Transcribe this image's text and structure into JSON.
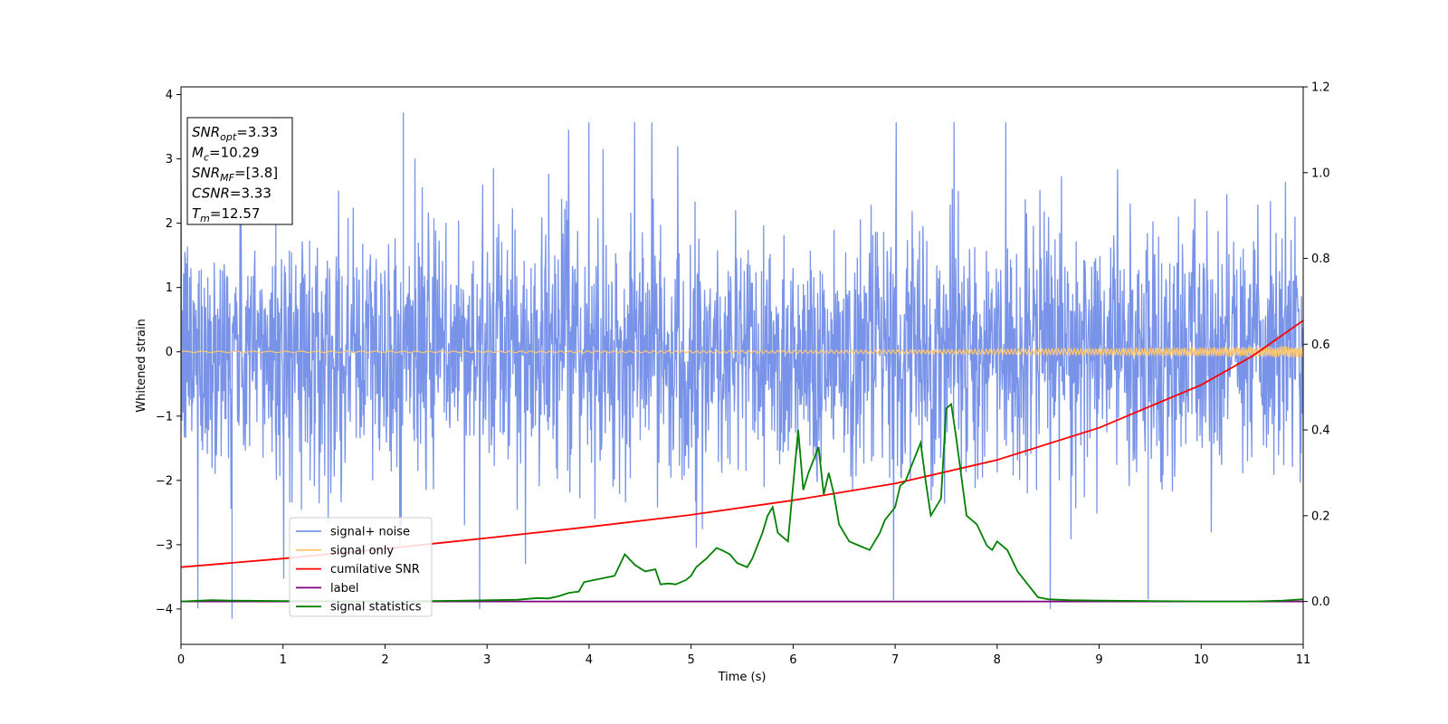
{
  "chart_data": {
    "type": "line",
    "title": "",
    "xlabel": "Time (s)",
    "ylabel": "Whitened strain",
    "xlim": [
      0,
      11
    ],
    "ylim_left": [
      -4.55,
      4.12
    ],
    "ylim_right": [
      -0.1,
      1.2
    ],
    "x_ticks": [
      0,
      1,
      2,
      3,
      4,
      5,
      6,
      7,
      8,
      9,
      10,
      11
    ],
    "y_ticks_left": [
      -4,
      -3,
      -2,
      -1,
      0,
      1,
      2,
      3,
      4
    ],
    "y_ticks_right": [
      0.0,
      0.2,
      0.4,
      0.6,
      0.8,
      1.0,
      1.2
    ],
    "y_tick_labels_left": [
      "−4",
      "−3",
      "−2",
      "−1",
      "0",
      "1",
      "2",
      "3",
      "4"
    ],
    "y_tick_labels_right": [
      "0.0",
      "0.2",
      "0.4",
      "0.6",
      "0.8",
      "1.0",
      "1.2"
    ],
    "grid": false,
    "legend_position": "lower-left",
    "annotation_lines": [
      {
        "sym": "SNR",
        "sub": "opt",
        "value": "=3.33"
      },
      {
        "sym": "M",
        "sub": "c",
        "value": "=10.29"
      },
      {
        "sym": "SNR",
        "sub": "MF",
        "value": "=[3.8]"
      },
      {
        "sym": "CSNR",
        "sub": "",
        "value": "=3.33"
      },
      {
        "sym": "T",
        "sub": "m",
        "value": "=12.57"
      }
    ],
    "series": [
      {
        "name": "signal+ noise",
        "color": "#7893e8",
        "axis": "left",
        "kind": "noise",
        "sigma": 0.95,
        "range": [
          -4.15,
          3.72
        ],
        "spikes": [
          [
            0.5,
            -4.15
          ],
          [
            2.18,
            3.72
          ],
          [
            9.48,
            -3.85
          ],
          [
            0.93,
            3.65
          ]
        ]
      },
      {
        "name": "signal only",
        "color": "#ffc870",
        "axis": "left",
        "kind": "chirp",
        "amplitude_start": 0.01,
        "amplitude_end": 0.09
      },
      {
        "name": "cumilative SNR",
        "color": "#ff0000",
        "axis": "right",
        "x": [
          0,
          1,
          2,
          3,
          4,
          5,
          6,
          7,
          8,
          9,
          10,
          10.5,
          11
        ],
        "y": [
          0.08,
          0.1,
          0.123,
          0.148,
          0.174,
          0.202,
          0.236,
          0.275,
          0.33,
          0.405,
          0.505,
          0.572,
          0.655
        ]
      },
      {
        "name": "label",
        "color": "#800080",
        "axis": "right",
        "x": [
          0,
          11
        ],
        "y": [
          0.0,
          0.0
        ]
      },
      {
        "name": "signal statistics",
        "color": "#008000",
        "axis": "right",
        "x": [
          0,
          0.3,
          0.5,
          1.0,
          2.0,
          2.8,
          3.3,
          3.5,
          3.6,
          3.7,
          3.8,
          3.9,
          3.95,
          4.05,
          4.15,
          4.25,
          4.35,
          4.45,
          4.55,
          4.65,
          4.7,
          4.78,
          4.85,
          4.95,
          5.0,
          5.05,
          5.15,
          5.25,
          5.3,
          5.38,
          5.45,
          5.55,
          5.6,
          5.7,
          5.75,
          5.8,
          5.85,
          5.95,
          6.05,
          6.1,
          6.15,
          6.25,
          6.3,
          6.35,
          6.4,
          6.45,
          6.55,
          6.65,
          6.75,
          6.85,
          6.9,
          7.0,
          7.05,
          7.1,
          7.2,
          7.25,
          7.3,
          7.35,
          7.45,
          7.5,
          7.55,
          7.6,
          7.7,
          7.8,
          7.9,
          7.95,
          8.0,
          8.1,
          8.2,
          8.3,
          8.4,
          8.5,
          8.7,
          9.0,
          9.5,
          10.0,
          10.5,
          10.8,
          11.0
        ],
        "y": [
          0.0,
          0.003,
          0.002,
          0.001,
          0.0,
          0.002,
          0.004,
          0.008,
          0.007,
          0.012,
          0.02,
          0.023,
          0.045,
          0.05,
          0.055,
          0.06,
          0.11,
          0.085,
          0.07,
          0.075,
          0.04,
          0.042,
          0.04,
          0.05,
          0.06,
          0.08,
          0.1,
          0.125,
          0.12,
          0.11,
          0.09,
          0.08,
          0.1,
          0.16,
          0.2,
          0.22,
          0.16,
          0.14,
          0.4,
          0.26,
          0.3,
          0.36,
          0.25,
          0.3,
          0.25,
          0.18,
          0.14,
          0.13,
          0.12,
          0.16,
          0.19,
          0.22,
          0.27,
          0.28,
          0.34,
          0.37,
          0.28,
          0.2,
          0.24,
          0.45,
          0.46,
          0.38,
          0.2,
          0.18,
          0.13,
          0.12,
          0.14,
          0.12,
          0.07,
          0.04,
          0.01,
          0.005,
          0.003,
          0.002,
          0.001,
          0.0,
          0.0,
          0.002,
          0.005
        ]
      }
    ]
  }
}
